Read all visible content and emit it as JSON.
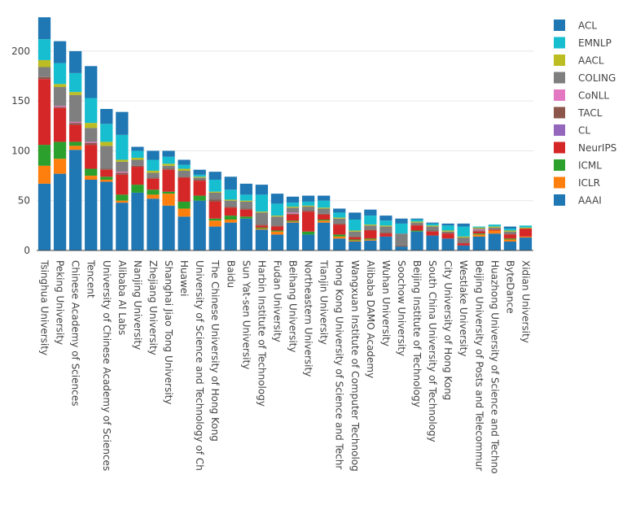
{
  "chart_data": {
    "type": "bar",
    "stacked": true,
    "title": "",
    "xlabel": "",
    "ylabel": "",
    "ylim": [
      0,
      235
    ],
    "yticks": [
      0,
      50,
      100,
      150,
      200
    ],
    "grid": true,
    "legend_position": "right",
    "categories": [
      "Tsinghua University",
      "Peking University",
      "Chinese Academy of Sciences",
      "Tencent",
      "University of Chinese Academy of Sciences",
      "Alibaba AI Labs",
      "Nanjing University",
      "Zhejiang University",
      "Shanghai Jiao Tong University",
      "Huawei",
      "University of Science and Technology of Ch",
      "The Chinese University of Hong Kong",
      "Baidu",
      "Sun Yat-sen University",
      "Harbin Institute of Technology",
      "Fudan University",
      "Beihang University",
      "Northeastern University",
      "Tianjin University",
      "Hong Kong University of Science and Techr",
      "Wangxuan Institute of Computer Technolog",
      "Alibaba DAMO Academy",
      "Wuhan University",
      "Soochow University",
      "Beijing Institute of Technology",
      "South China University of Technology",
      "City University of Hong Kong",
      "Westlake University",
      "Beijing University of Posts and Telecommur",
      "Huazhong University of Science and Techno",
      "ByteDance",
      "Xidian University"
    ],
    "series": [
      {
        "name": "AAAI",
        "color": "#1f77b4",
        "values": [
          67,
          77,
          101,
          71,
          69,
          48,
          58,
          52,
          45,
          34,
          50,
          24,
          28,
          32,
          21,
          16,
          28,
          16,
          28,
          12,
          9,
          10,
          14,
          4,
          19,
          15,
          12,
          5,
          14,
          17,
          9,
          13
        ]
      },
      {
        "name": "ICLR",
        "color": "#ff7f0e",
        "values": [
          18,
          15,
          4,
          4,
          2,
          2,
          0,
          4,
          12,
          8,
          0,
          6,
          3,
          0,
          1,
          3,
          1,
          0,
          2,
          2,
          1,
          1,
          0,
          0,
          0,
          0,
          0,
          0,
          2,
          3,
          2,
          1
        ]
      },
      {
        "name": "ICML",
        "color": "#2ca02c",
        "values": [
          21,
          17,
          4,
          7,
          3,
          6,
          8,
          5,
          2,
          7,
          5,
          2,
          4,
          2,
          1,
          1,
          1,
          3,
          1,
          2,
          1,
          1,
          0,
          0,
          1,
          0,
          0,
          0,
          1,
          0,
          1,
          0
        ]
      },
      {
        "name": "NeurIPS",
        "color": "#d62728",
        "values": [
          66,
          34,
          17,
          24,
          7,
          20,
          18,
          11,
          22,
          24,
          15,
          17,
          8,
          7,
          2,
          4,
          6,
          20,
          5,
          10,
          2,
          8,
          3,
          0,
          5,
          4,
          5,
          2,
          2,
          1,
          4,
          8
        ]
      },
      {
        "name": "CL",
        "color": "#9467bd",
        "values": [
          0,
          0,
          0,
          0,
          0,
          0,
          0,
          0,
          0,
          0,
          0,
          0,
          0,
          0,
          0,
          0,
          0,
          0,
          0,
          0,
          0,
          0,
          0,
          0,
          0,
          0,
          0,
          0,
          0,
          0,
          0,
          0
        ]
      },
      {
        "name": "TACL",
        "color": "#8c564b",
        "values": [
          2,
          1,
          2,
          2,
          1,
          2,
          1,
          1,
          1,
          1,
          1,
          2,
          1,
          1,
          1,
          1,
          1,
          1,
          1,
          1,
          1,
          1,
          1,
          1,
          1,
          1,
          1,
          1,
          1,
          0,
          1,
          0
        ]
      },
      {
        "name": "CoNLL",
        "color": "#e377c2",
        "values": [
          0,
          1,
          1,
          1,
          0,
          1,
          0,
          0,
          0,
          0,
          0,
          0,
          0,
          0,
          0,
          0,
          1,
          0,
          0,
          0,
          0,
          0,
          0,
          0,
          0,
          0,
          0,
          0,
          1,
          0,
          0,
          0
        ]
      },
      {
        "name": "COLING",
        "color": "#7f7f7f",
        "values": [
          10,
          19,
          27,
          14,
          23,
          10,
          6,
          5,
          3,
          6,
          2,
          7,
          6,
          7,
          12,
          9,
          5,
          4,
          5,
          5,
          5,
          4,
          6,
          12,
          2,
          4,
          1,
          5,
          1,
          2,
          2,
          0
        ]
      },
      {
        "name": "AACL",
        "color": "#bcbd22",
        "values": [
          7,
          3,
          3,
          5,
          4,
          2,
          2,
          2,
          2,
          2,
          1,
          1,
          1,
          1,
          1,
          1,
          1,
          1,
          1,
          1,
          1,
          1,
          1,
          0,
          1,
          1,
          1,
          1,
          1,
          1,
          1,
          1
        ]
      },
      {
        "name": "EMNLP",
        "color": "#17becf",
        "values": [
          21,
          21,
          19,
          25,
          18,
          25,
          7,
          11,
          7,
          4,
          2,
          12,
          10,
          6,
          17,
          12,
          4,
          4,
          7,
          5,
          11,
          9,
          5,
          10,
          2,
          2,
          5,
          10,
          1,
          2,
          2,
          2
        ]
      },
      {
        "name": "ACL",
        "color": "#1f77b4",
        "values": [
          22,
          22,
          22,
          32,
          15,
          23,
          4,
          9,
          6,
          5,
          5,
          8,
          13,
          11,
          10,
          10,
          6,
          6,
          5,
          4,
          7,
          6,
          5,
          5,
          1,
          1,
          2,
          3,
          0,
          0,
          2,
          0
        ]
      }
    ],
    "legend_order": [
      "ACL",
      "EMNLP",
      "AACL",
      "COLING",
      "CoNLL",
      "TACL",
      "CL",
      "NeurIPS",
      "ICML",
      "ICLR",
      "AAAI"
    ]
  }
}
